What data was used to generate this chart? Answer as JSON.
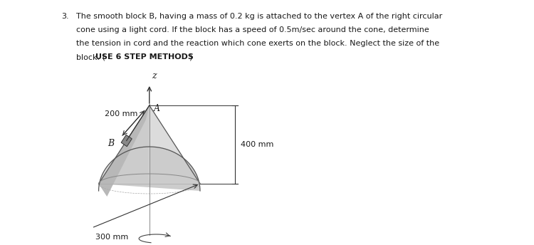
{
  "title_num": "3.",
  "line1": "The smooth block B, having a mass of 0.2 kg is attached to the vertex A of the right circular",
  "line2": "cone using a light cord. If the block has a speed of 0.5m/sec around the cone, determine",
  "line3": "the tension in cord and the reaction which cone exerts on the block. Neglect the size of the",
  "line4_normal": "block. (",
  "line4_bold": "USE 6 STEP METHODS",
  "line4_end": ")",
  "label_A": "A",
  "label_B": "B",
  "label_z": "z",
  "label_200mm": "200 mm",
  "label_400mm": "400 mm",
  "label_300mm": "300 mm",
  "bg_color": "#ffffff",
  "text_color": "#1a1a1a",
  "cone_light": "#e0e0e0",
  "cone_mid": "#c8c8c8",
  "cone_dark": "#b0b0b0",
  "cone_darker": "#999999",
  "outline_color": "#555555",
  "dim_color": "#333333"
}
